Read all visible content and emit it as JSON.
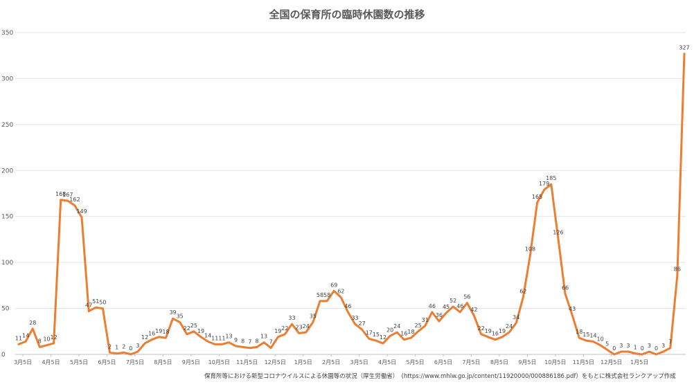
{
  "chart_data": {
    "type": "line",
    "title": "全国の保育所の臨時休園数の推移",
    "xlabel": "",
    "ylabel": "",
    "ylim": [
      0,
      350
    ],
    "yticks": [
      0,
      50,
      100,
      150,
      200,
      250,
      300,
      350
    ],
    "grid": true,
    "series_color": "#ED7D31",
    "x_tick_labels": [
      "3月5日",
      "4月5日",
      "5月5日",
      "6月5日",
      "7月5日",
      "8月5日",
      "9月5日",
      "10月5日",
      "11月5日",
      "12月5日",
      "1月5日",
      "2月5日",
      "3月5日",
      "4月5日",
      "5月5日",
      "6月5日",
      "7月5日",
      "8月5日",
      "9月5日",
      "10月5日",
      "11月5日",
      "12月5日",
      "1月5日"
    ],
    "series": [
      {
        "name": "臨時休園数",
        "values": [
          11,
          14,
          28,
          8,
          10,
          12,
          168,
          167,
          162,
          149,
          47,
          51,
          50,
          2,
          1,
          2,
          0,
          3,
          12,
          16,
          19,
          18,
          39,
          35,
          22,
          25,
          19,
          14,
          11,
          11,
          13,
          9,
          8,
          7,
          8,
          13,
          7,
          19,
          22,
          33,
          23,
          24,
          35,
          58,
          58,
          69,
          62,
          46,
          33,
          27,
          17,
          15,
          12,
          20,
          24,
          16,
          18,
          25,
          31,
          46,
          36,
          45,
          52,
          46,
          56,
          42,
          22,
          19,
          16,
          19,
          24,
          34,
          62,
          108,
          165,
          179,
          185,
          126,
          66,
          43,
          18,
          15,
          14,
          10,
          5,
          0,
          3,
          3,
          1,
          0,
          3,
          0,
          3,
          7,
          86,
          327
        ]
      }
    ],
    "source_note": "保育所等における新型コロナウイルスによる休園等の状況（厚生労働省）　(https://www.mhlw.go.jp/content/11920000/000886186.pdf）をもとに株式会社ランクアップ作成"
  }
}
